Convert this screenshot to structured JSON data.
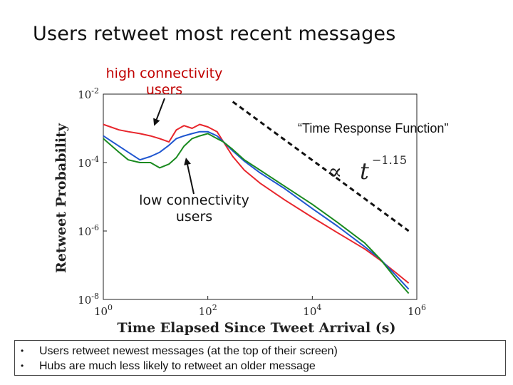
{
  "slide": {
    "title": "Users retweet most recent messages",
    "annotations": {
      "high": "high connectivity\nusers",
      "low": "low connectivity\nusers",
      "trf": "“Time Response Function”",
      "formula_prop": "∝",
      "formula_t": "t",
      "formula_exp": "−1.15"
    },
    "bullets": [
      "Users retweet newest messages (at the top of their screen)",
      "Hubs are much less likely to retweet an older message"
    ],
    "bullet_glyph": "•"
  },
  "chart_data": {
    "type": "line",
    "xlabel": "Time Elapsed Since Tweet Arrival (s)",
    "ylabel": "Retweet Probability",
    "xscale": "log",
    "yscale": "log",
    "xlim": [
      1,
      1000000
    ],
    "ylim": [
      1e-08,
      0.01
    ],
    "x_ticks": [
      {
        "base": "10",
        "exp": "0"
      },
      {
        "base": "10",
        "exp": "2"
      },
      {
        "base": "10",
        "exp": "4"
      },
      {
        "base": "10",
        "exp": "6"
      }
    ],
    "y_ticks": [
      {
        "base": "10",
        "exp": "-8"
      },
      {
        "base": "10",
        "exp": "-6"
      },
      {
        "base": "10",
        "exp": "-4"
      },
      {
        "base": "10",
        "exp": "-2"
      }
    ],
    "grid": false,
    "series": [
      {
        "color": "#e8262c",
        "x": [
          1,
          2,
          3,
          5,
          8,
          12,
          18,
          25,
          35,
          50,
          70,
          100,
          150,
          200,
          300,
          500,
          1000,
          3000,
          10000,
          30000,
          100000,
          200000,
          400000,
          700000
        ],
        "y": [
          0.0013,
          0.0009,
          0.0008,
          0.0007,
          0.0006,
          0.0005,
          0.0004,
          0.0009,
          0.0012,
          0.001,
          0.0013,
          0.0011,
          0.0008,
          0.0004,
          0.00015,
          6e-05,
          2.5e-05,
          8e-06,
          2.5e-06,
          9e-07,
          3e-07,
          1.4e-07,
          6e-08,
          3e-08
        ]
      },
      {
        "color": "#1f56d0",
        "x": [
          1,
          2,
          3,
          5,
          8,
          12,
          18,
          25,
          35,
          50,
          70,
          100,
          150,
          200,
          300,
          500,
          1000,
          3000,
          10000,
          30000,
          100000,
          200000,
          400000,
          700000
        ],
        "y": [
          0.0006,
          0.0003,
          0.0002,
          0.00012,
          0.00015,
          0.0002,
          0.00032,
          0.0005,
          0.0006,
          0.0007,
          0.0008,
          0.0008,
          0.0006,
          0.0004,
          0.00022,
          0.00011,
          5e-05,
          1.7e-05,
          4.5e-06,
          1.4e-06,
          3.5e-07,
          1.5e-07,
          5e-08,
          2e-08
        ]
      },
      {
        "color": "#1a8a1f",
        "x": [
          1,
          2,
          3,
          5,
          8,
          12,
          18,
          25,
          35,
          50,
          70,
          100,
          150,
          200,
          300,
          500,
          1000,
          3000,
          10000,
          30000,
          100000,
          200000,
          400000,
          700000
        ],
        "y": [
          0.0005,
          0.0002,
          0.00012,
          0.0001,
          0.0001,
          7e-05,
          9e-05,
          0.00014,
          0.0003,
          0.0005,
          0.0006,
          0.0007,
          0.0005,
          0.0004,
          0.00024,
          0.00012,
          6e-05,
          2e-05,
          6e-06,
          1.8e-06,
          4.5e-07,
          1.5e-07,
          4e-08,
          1.5e-08
        ]
      }
    ],
    "reference_line": {
      "style": "dashed",
      "color": "#111111",
      "x": [
        300,
        700000
      ],
      "y": [
        0.006,
        1e-06
      ]
    }
  }
}
